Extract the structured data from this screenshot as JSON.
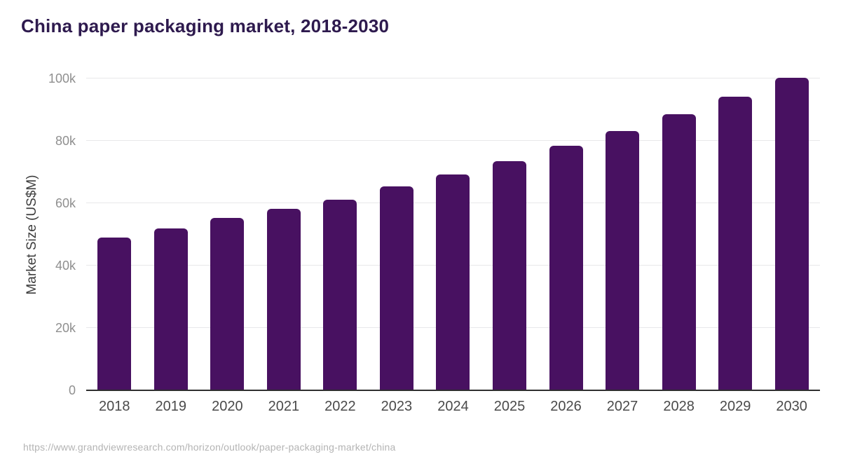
{
  "header": {
    "title": "China paper packaging market, 2018-2030"
  },
  "chart_data": {
    "type": "bar",
    "title": "China paper packaging market, 2018-2030",
    "categories": [
      "2018",
      "2019",
      "2020",
      "2021",
      "2022",
      "2023",
      "2024",
      "2025",
      "2026",
      "2027",
      "2028",
      "2029",
      "2030"
    ],
    "values": [
      49000,
      51900,
      55300,
      58200,
      61100,
      65300,
      69300,
      73500,
      78400,
      83100,
      88500,
      94100,
      100200
    ],
    "xlabel": "",
    "ylabel": "Market Size (US$M)",
    "ylim": [
      0,
      100000
    ],
    "yticks": [
      {
        "value": 0,
        "label": "0"
      },
      {
        "value": 20000,
        "label": "20k"
      },
      {
        "value": 40000,
        "label": "40k"
      },
      {
        "value": 60000,
        "label": "60k"
      },
      {
        "value": 80000,
        "label": "80k"
      },
      {
        "value": 100000,
        "label": "100k"
      }
    ],
    "grid": "horizontal",
    "legend": "none",
    "bar_color": "#481161"
  },
  "colors": {
    "title_text": "#2e1a4e",
    "bar_fill": "#481161",
    "gridline": "#e8e8ea",
    "axis_line": "#2f2f2f",
    "tick_text": "#8f8f8f",
    "category_text": "#4a4a4a",
    "source_text": "#b4b4b4"
  },
  "footer": {
    "source_url": "https://www.grandviewresearch.com/horizon/outlook/paper-packaging-market/china"
  }
}
